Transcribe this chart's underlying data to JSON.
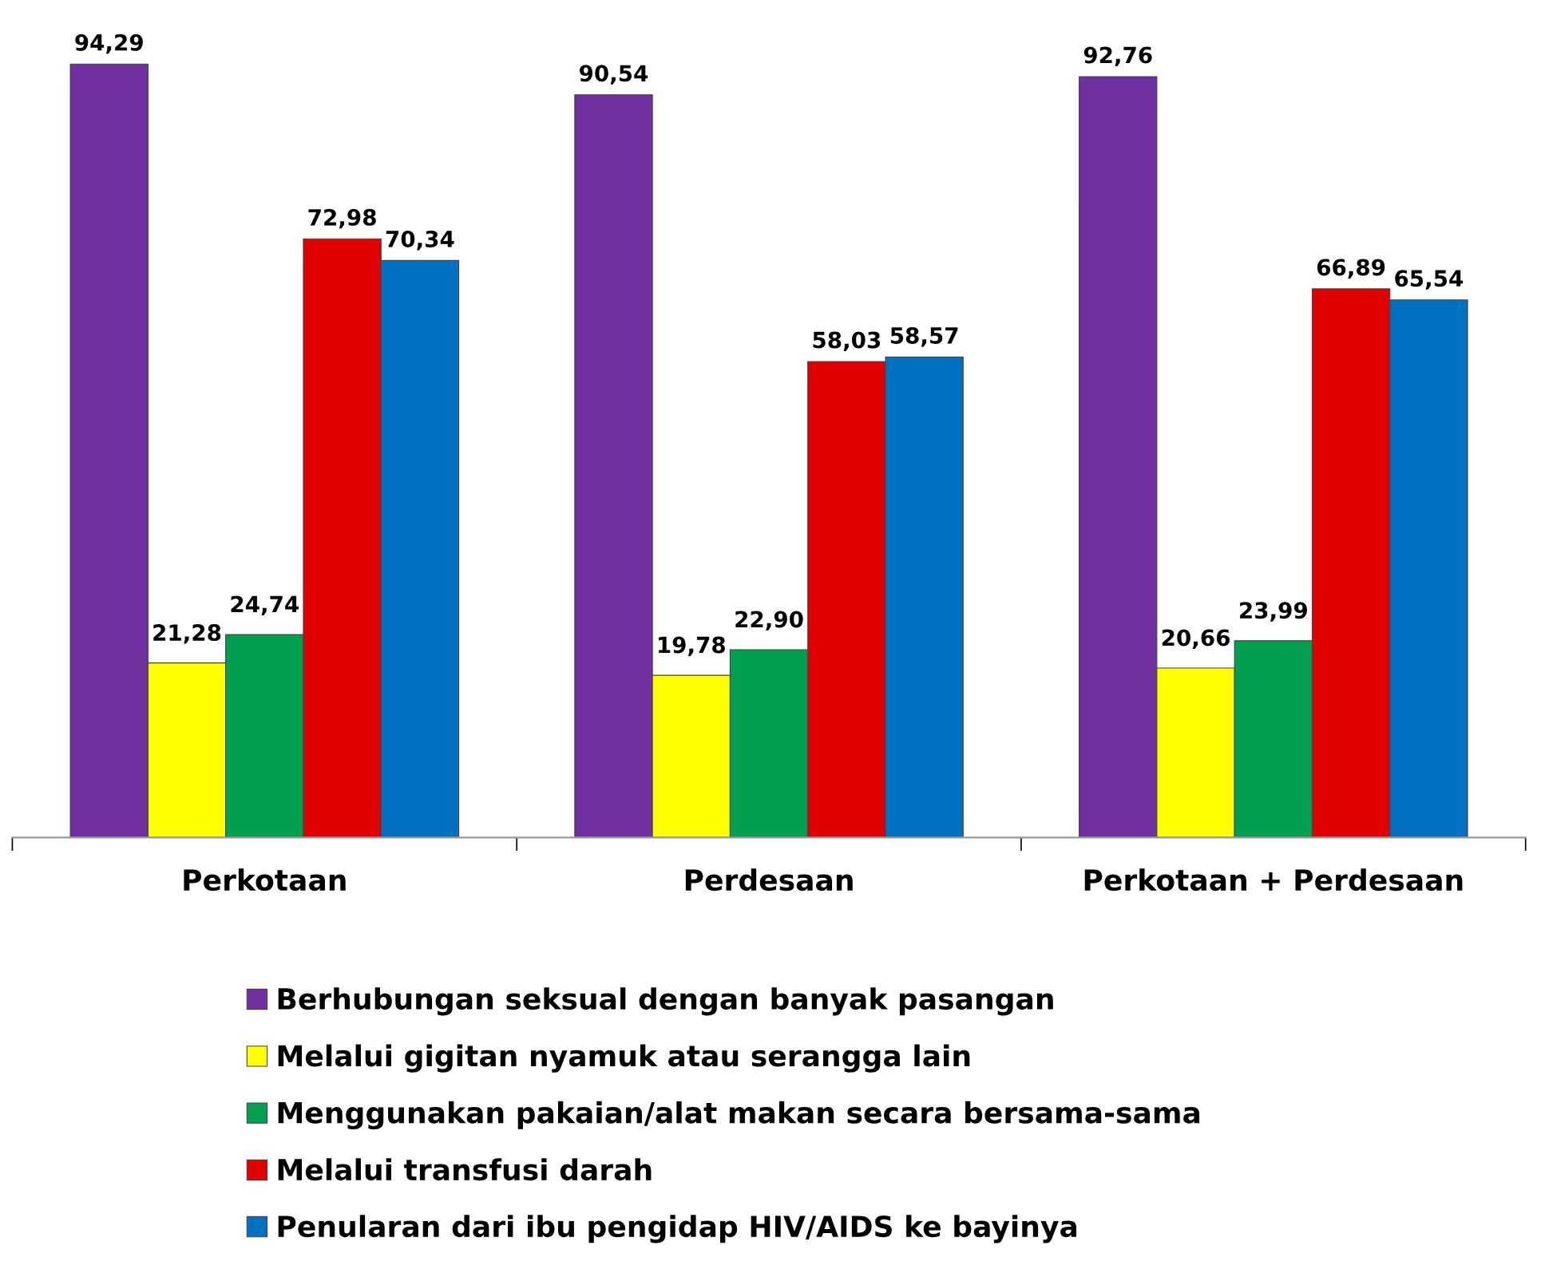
{
  "chart_data": {
    "type": "bar",
    "categories": [
      "Perkotaan",
      "Perdesaan",
      "Perkotaan + Perdesaan"
    ],
    "series": [
      {
        "name": "Berhubungan seksual dengan banyak pasangan",
        "color": "#7030a0",
        "values": [
          94.29,
          90.54,
          92.76
        ],
        "value_labels": [
          "94,29",
          "90,54",
          "92,76"
        ]
      },
      {
        "name": "Melalui gigitan nyamuk atau serangga lain",
        "color": "#ffff00",
        "values": [
          21.28,
          19.78,
          20.66
        ],
        "value_labels": [
          "21,28",
          "19,78",
          "20,66"
        ]
      },
      {
        "name": "Menggunakan pakaian/alat makan secara bersama-sama",
        "color": "#00a050",
        "values": [
          24.74,
          22.9,
          23.99
        ],
        "value_labels": [
          "24,74",
          "22,90",
          "23,99"
        ]
      },
      {
        "name": "Melalui transfusi darah",
        "color": "#e00000",
        "values": [
          72.98,
          58.03,
          66.89
        ],
        "value_labels": [
          "72,98",
          "58,03",
          "66,89"
        ]
      },
      {
        "name": "Penularan dari ibu pengidap HIV/AIDS ke bayinya",
        "color": "#0070c0",
        "values": [
          70.34,
          58.57,
          65.54
        ],
        "value_labels": [
          "70,34",
          "58,57",
          "65,54"
        ]
      }
    ],
    "legend": "bottom",
    "grid": false
  }
}
